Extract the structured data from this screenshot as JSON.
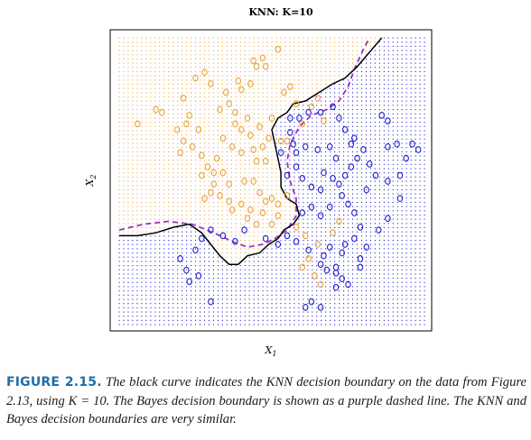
{
  "fragment": "'",
  "chart_data": {
    "type": "scatter",
    "title": "KNN: K=10",
    "xlabel": "X1",
    "ylabel": "X2",
    "xlim": [
      0,
      1
    ],
    "ylim": [
      0,
      1
    ],
    "grid_points": "dot lattice colored by KNN-predicted class",
    "colors": {
      "orange": "#e8a33c",
      "blue": "#2222cc",
      "bayes": "#9b30c8",
      "knn": "#000000"
    },
    "orange_points": [
      [
        0.06,
        0.7
      ],
      [
        0.12,
        0.75
      ],
      [
        0.14,
        0.74
      ],
      [
        0.19,
        0.68
      ],
      [
        0.21,
        0.79
      ],
      [
        0.21,
        0.64
      ],
      [
        0.22,
        0.7
      ],
      [
        0.23,
        0.73
      ],
      [
        0.27,
        0.59
      ],
      [
        0.25,
        0.86
      ],
      [
        0.28,
        0.88
      ],
      [
        0.3,
        0.84
      ],
      [
        0.35,
        0.81
      ],
      [
        0.39,
        0.85
      ],
      [
        0.4,
        0.82
      ],
      [
        0.43,
        0.84
      ],
      [
        0.44,
        0.92
      ],
      [
        0.45,
        0.9
      ],
      [
        0.47,
        0.93
      ],
      [
        0.48,
        0.9
      ],
      [
        0.52,
        0.96
      ],
      [
        0.54,
        0.81
      ],
      [
        0.56,
        0.83
      ],
      [
        0.58,
        0.77
      ],
      [
        0.63,
        0.76
      ],
      [
        0.65,
        0.79
      ],
      [
        0.67,
        0.71
      ],
      [
        0.6,
        0.7
      ],
      [
        0.49,
        0.65
      ],
      [
        0.47,
        0.62
      ],
      [
        0.43,
        0.66
      ],
      [
        0.4,
        0.6
      ],
      [
        0.37,
        0.62
      ],
      [
        0.34,
        0.65
      ],
      [
        0.32,
        0.58
      ],
      [
        0.29,
        0.55
      ],
      [
        0.27,
        0.52
      ],
      [
        0.31,
        0.53
      ],
      [
        0.34,
        0.53
      ],
      [
        0.36,
        0.49
      ],
      [
        0.41,
        0.5
      ],
      [
        0.44,
        0.5
      ],
      [
        0.46,
        0.46
      ],
      [
        0.48,
        0.43
      ],
      [
        0.5,
        0.44
      ],
      [
        0.52,
        0.42
      ],
      [
        0.55,
        0.45
      ],
      [
        0.47,
        0.39
      ],
      [
        0.45,
        0.35
      ],
      [
        0.42,
        0.37
      ],
      [
        0.37,
        0.4
      ],
      [
        0.31,
        0.49
      ],
      [
        0.28,
        0.44
      ],
      [
        0.3,
        0.46
      ],
      [
        0.33,
        0.45
      ],
      [
        0.36,
        0.43
      ],
      [
        0.4,
        0.42
      ],
      [
        0.43,
        0.4
      ],
      [
        0.5,
        0.35
      ],
      [
        0.52,
        0.38
      ],
      [
        0.58,
        0.34
      ],
      [
        0.61,
        0.31
      ],
      [
        0.65,
        0.28
      ],
      [
        0.7,
        0.32
      ],
      [
        0.72,
        0.36
      ],
      [
        0.62,
        0.23
      ],
      [
        0.6,
        0.2
      ],
      [
        0.64,
        0.17
      ],
      [
        0.66,
        0.14
      ],
      [
        0.55,
        0.64
      ],
      [
        0.48,
        0.57
      ],
      [
        0.45,
        0.57
      ],
      [
        0.38,
        0.7
      ],
      [
        0.4,
        0.68
      ],
      [
        0.46,
        0.69
      ],
      [
        0.5,
        0.72
      ],
      [
        0.53,
        0.64
      ],
      [
        0.2,
        0.6
      ],
      [
        0.24,
        0.62
      ],
      [
        0.26,
        0.68
      ],
      [
        0.33,
        0.75
      ],
      [
        0.36,
        0.77
      ],
      [
        0.38,
        0.74
      ],
      [
        0.42,
        0.72
      ],
      [
        0.44,
        0.61
      ]
    ],
    "blue_points": [
      [
        0.56,
        0.72
      ],
      [
        0.59,
        0.72
      ],
      [
        0.62,
        0.74
      ],
      [
        0.66,
        0.74
      ],
      [
        0.7,
        0.76
      ],
      [
        0.72,
        0.72
      ],
      [
        0.74,
        0.68
      ],
      [
        0.77,
        0.65
      ],
      [
        0.8,
        0.61
      ],
      [
        0.82,
        0.56
      ],
      [
        0.76,
        0.55
      ],
      [
        0.74,
        0.52
      ],
      [
        0.72,
        0.49
      ],
      [
        0.7,
        0.51
      ],
      [
        0.67,
        0.53
      ],
      [
        0.66,
        0.47
      ],
      [
        0.63,
        0.48
      ],
      [
        0.6,
        0.51
      ],
      [
        0.58,
        0.55
      ],
      [
        0.58,
        0.6
      ],
      [
        0.61,
        0.62
      ],
      [
        0.65,
        0.61
      ],
      [
        0.69,
        0.62
      ],
      [
        0.71,
        0.58
      ],
      [
        0.73,
        0.45
      ],
      [
        0.75,
        0.42
      ],
      [
        0.77,
        0.39
      ],
      [
        0.79,
        0.34
      ],
      [
        0.77,
        0.3
      ],
      [
        0.74,
        0.28
      ],
      [
        0.73,
        0.25
      ],
      [
        0.69,
        0.27
      ],
      [
        0.67,
        0.24
      ],
      [
        0.66,
        0.21
      ],
      [
        0.68,
        0.19
      ],
      [
        0.71,
        0.2
      ],
      [
        0.73,
        0.16
      ],
      [
        0.75,
        0.14
      ],
      [
        0.71,
        0.13
      ],
      [
        0.62,
        0.26
      ],
      [
        0.58,
        0.29
      ],
      [
        0.55,
        0.31
      ],
      [
        0.52,
        0.28
      ],
      [
        0.48,
        0.3
      ],
      [
        0.41,
        0.33
      ],
      [
        0.38,
        0.29
      ],
      [
        0.34,
        0.31
      ],
      [
        0.3,
        0.33
      ],
      [
        0.27,
        0.3
      ],
      [
        0.25,
        0.26
      ],
      [
        0.22,
        0.19
      ],
      [
        0.26,
        0.17
      ],
      [
        0.3,
        0.08
      ],
      [
        0.23,
        0.15
      ],
      [
        0.2,
        0.23
      ],
      [
        0.63,
        0.08
      ],
      [
        0.61,
        0.06
      ],
      [
        0.66,
        0.06
      ],
      [
        0.85,
        0.33
      ],
      [
        0.88,
        0.37
      ],
      [
        0.92,
        0.44
      ],
      [
        0.96,
        0.63
      ],
      [
        0.91,
        0.63
      ],
      [
        0.88,
        0.62
      ],
      [
        0.94,
        0.58
      ],
      [
        0.98,
        0.61
      ],
      [
        0.88,
        0.5
      ],
      [
        0.84,
        0.52
      ],
      [
        0.78,
        0.58
      ],
      [
        0.76,
        0.63
      ],
      [
        0.92,
        0.52
      ],
      [
        0.81,
        0.47
      ],
      [
        0.86,
        0.73
      ],
      [
        0.88,
        0.71
      ],
      [
        0.55,
        0.52
      ],
      [
        0.57,
        0.63
      ],
      [
        0.53,
        0.6
      ],
      [
        0.56,
        0.67
      ],
      [
        0.71,
        0.18
      ],
      [
        0.79,
        0.2
      ],
      [
        0.69,
        0.41
      ],
      [
        0.63,
        0.41
      ],
      [
        0.6,
        0.39
      ],
      [
        0.66,
        0.38
      ],
      [
        0.79,
        0.23
      ],
      [
        0.81,
        0.27
      ]
    ],
    "knn_boundary": [
      [
        0.0,
        0.31
      ],
      [
        0.06,
        0.31
      ],
      [
        0.12,
        0.32
      ],
      [
        0.18,
        0.34
      ],
      [
        0.23,
        0.35
      ],
      [
        0.27,
        0.32
      ],
      [
        0.3,
        0.28
      ],
      [
        0.33,
        0.24
      ],
      [
        0.36,
        0.21
      ],
      [
        0.39,
        0.21
      ],
      [
        0.42,
        0.24
      ],
      [
        0.46,
        0.25
      ],
      [
        0.49,
        0.28
      ],
      [
        0.52,
        0.3
      ],
      [
        0.54,
        0.33
      ],
      [
        0.57,
        0.35
      ],
      [
        0.59,
        0.38
      ],
      [
        0.58,
        0.42
      ],
      [
        0.55,
        0.44
      ],
      [
        0.53,
        0.48
      ],
      [
        0.53,
        0.53
      ],
      [
        0.52,
        0.58
      ],
      [
        0.51,
        0.63
      ],
      [
        0.5,
        0.68
      ],
      [
        0.52,
        0.72
      ],
      [
        0.55,
        0.74
      ],
      [
        0.57,
        0.77
      ],
      [
        0.61,
        0.78
      ],
      [
        0.64,
        0.8
      ],
      [
        0.67,
        0.82
      ],
      [
        0.7,
        0.84
      ],
      [
        0.74,
        0.86
      ],
      [
        0.78,
        0.9
      ],
      [
        0.82,
        0.95
      ],
      [
        0.86,
        1.0
      ]
    ],
    "bayes_boundary": [
      [
        0.0,
        0.33
      ],
      [
        0.08,
        0.35
      ],
      [
        0.16,
        0.36
      ],
      [
        0.24,
        0.35
      ],
      [
        0.31,
        0.32
      ],
      [
        0.37,
        0.29
      ],
      [
        0.42,
        0.27
      ],
      [
        0.47,
        0.28
      ],
      [
        0.51,
        0.3
      ],
      [
        0.55,
        0.33
      ],
      [
        0.58,
        0.38
      ],
      [
        0.58,
        0.44
      ],
      [
        0.56,
        0.5
      ],
      [
        0.55,
        0.57
      ],
      [
        0.56,
        0.63
      ],
      [
        0.59,
        0.69
      ],
      [
        0.63,
        0.73
      ],
      [
        0.68,
        0.75
      ],
      [
        0.72,
        0.78
      ],
      [
        0.75,
        0.83
      ],
      [
        0.77,
        0.89
      ],
      [
        0.8,
        0.96
      ],
      [
        0.82,
        1.0
      ]
    ]
  },
  "caption": {
    "label": "FIGURE 2.15.",
    "text": "The black curve indicates the KNN decision boundary on the data from Figure 2.13, using K = 10. The Bayes decision boundary is shown as a purple dashed line. The KNN and Bayes decision boundaries are very similar."
  }
}
